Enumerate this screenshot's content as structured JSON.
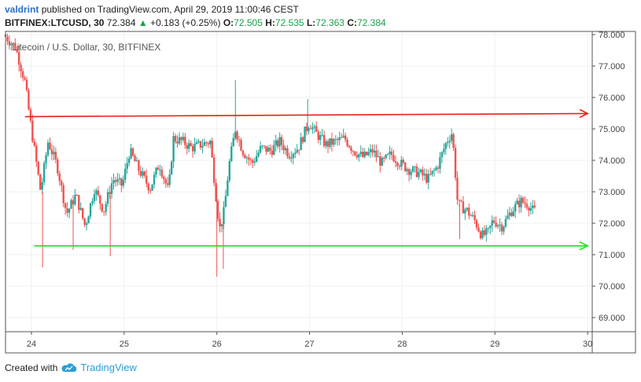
{
  "header": {
    "user": "valdrint",
    "published": "published on TradingView.com, April 29, 2019 11:00:46 CEST"
  },
  "ticker": {
    "symbol": "BITFINEX:LTCUSD, 30",
    "last": "72.384",
    "arrow": "▲",
    "change": "+0.183 (+0.25%)",
    "o_label": "O:",
    "o": "72.505",
    "h_label": "H:",
    "h": "72.535",
    "l_label": "L:",
    "l": "72.363",
    "c_label": "C:",
    "c": "72.384"
  },
  "footer": {
    "created": "Created with",
    "brand": "TradingView",
    "logo_icon": "tradingview-cloud-icon"
  },
  "colors": {
    "up": "#26a69a",
    "down": "#ef5350",
    "resistance": "#e8221b",
    "support": "#1ee01e",
    "grid": "#eef1f4",
    "axis_border": "#555555"
  },
  "chart_data": {
    "type": "candlestick",
    "title": "Litecoin / U.S. Dollar, 30, BITFINEX",
    "xlabel": "",
    "ylabel": "",
    "x_ticks": [
      "24",
      "25",
      "26",
      "27",
      "28",
      "29",
      "30"
    ],
    "y_ticks": [
      "69.000",
      "70.000",
      "71.000",
      "72.000",
      "73.000",
      "74.000",
      "75.000",
      "76.000",
      "77.000",
      "78.000"
    ],
    "xlim": [
      23.72,
      30.05
    ],
    "ylim": [
      68.55,
      78.1
    ],
    "grid": true,
    "price_path": [
      [
        23.72,
        78.0
      ],
      [
        23.85,
        77.6
      ],
      [
        23.95,
        76.5
      ],
      [
        24.0,
        75.4
      ],
      [
        24.06,
        74.2
      ],
      [
        24.12,
        73.0
      ],
      [
        24.2,
        74.6
      ],
      [
        24.3,
        73.8
      ],
      [
        24.4,
        72.3
      ],
      [
        24.5,
        72.9
      ],
      [
        24.6,
        71.9
      ],
      [
        24.7,
        73.1
      ],
      [
        24.8,
        72.4
      ],
      [
        24.9,
        73.4
      ],
      [
        25.0,
        73.2
      ],
      [
        25.08,
        74.3
      ],
      [
        25.18,
        73.7
      ],
      [
        25.3,
        73.1
      ],
      [
        25.4,
        73.9
      ],
      [
        25.5,
        73.0
      ],
      [
        25.55,
        74.7
      ],
      [
        25.65,
        74.6
      ],
      [
        25.75,
        74.4
      ],
      [
        25.85,
        74.5
      ],
      [
        25.95,
        74.6
      ],
      [
        26.0,
        73.2
      ],
      [
        26.05,
        71.8
      ],
      [
        26.1,
        72.4
      ],
      [
        26.15,
        73.8
      ],
      [
        26.22,
        75.0
      ],
      [
        26.3,
        74.3
      ],
      [
        26.4,
        73.9
      ],
      [
        26.5,
        74.4
      ],
      [
        26.6,
        74.3
      ],
      [
        26.7,
        74.6
      ],
      [
        26.8,
        74.2
      ],
      [
        26.9,
        74.4
      ],
      [
        26.97,
        74.9
      ],
      [
        27.02,
        75.2
      ],
      [
        27.08,
        74.9
      ],
      [
        27.2,
        74.5
      ],
      [
        27.3,
        74.6
      ],
      [
        27.4,
        74.7
      ],
      [
        27.5,
        74.3
      ],
      [
        27.6,
        74.1
      ],
      [
        27.7,
        74.3
      ],
      [
        27.8,
        73.9
      ],
      [
        27.9,
        74.2
      ],
      [
        28.0,
        73.9
      ],
      [
        28.1,
        73.7
      ],
      [
        28.2,
        73.6
      ],
      [
        28.3,
        73.4
      ],
      [
        28.4,
        73.8
      ],
      [
        28.5,
        74.6
      ],
      [
        28.56,
        74.9
      ],
      [
        28.62,
        72.6
      ],
      [
        28.72,
        72.4
      ],
      [
        28.8,
        72.1
      ],
      [
        28.88,
        71.6
      ],
      [
        28.95,
        71.7
      ],
      [
        29.0,
        72.1
      ],
      [
        29.1,
        71.9
      ],
      [
        29.2,
        72.4
      ],
      [
        29.3,
        72.7
      ],
      [
        29.38,
        72.6
      ],
      [
        29.43,
        72.4
      ]
    ],
    "spikes": [
      {
        "x": 24.12,
        "low": 70.6
      },
      {
        "x": 24.45,
        "low": 71.15
      },
      {
        "x": 24.85,
        "low": 70.95
      },
      {
        "x": 26.0,
        "low": 70.3
      },
      {
        "x": 26.07,
        "low": 70.55
      },
      {
        "x": 26.2,
        "high": 76.55
      },
      {
        "x": 26.98,
        "high": 75.95
      },
      {
        "x": 28.62,
        "low": 71.5
      }
    ],
    "annotations": [
      {
        "name": "resistance-line",
        "x1": 23.93,
        "y1": 75.39,
        "x2": 30.0,
        "y2": 75.49,
        "color": "#e8221b"
      },
      {
        "name": "support-line",
        "x1": 24.03,
        "y1": 71.28,
        "x2": 30.0,
        "y2": 71.28,
        "color": "#1ee01e"
      }
    ]
  }
}
